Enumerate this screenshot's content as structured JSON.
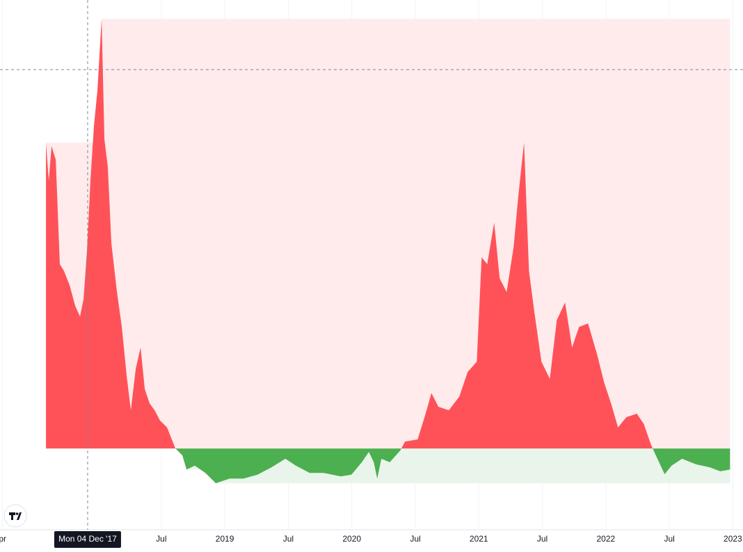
{
  "chart_data": {
    "type": "baseline-area",
    "baseline": 0,
    "top_color": "#ff5258",
    "bottom_color": "#4caf50",
    "top_band_color": "#ffebec",
    "bottom_band_color": "#e9f5ea",
    "grid": true,
    "xlim": [
      2017.23,
      2023.08
    ],
    "ylim": [
      -18.6,
      104.4
    ],
    "xticks": [
      {
        "value": 2017.25,
        "label": "pr"
      },
      {
        "value": 2018.5,
        "label": "Jul"
      },
      2019,
      {
        "value": 2019.5,
        "label": "Jul"
      },
      2020,
      {
        "value": 2020.5,
        "label": "Jul"
      },
      2021,
      {
        "value": 2021.5,
        "label": "Jul"
      },
      2022,
      {
        "value": 2022.5,
        "label": "Jul"
      },
      2023
    ],
    "crosshair": {
      "x": 2017.92,
      "y": 88.2,
      "label": "Mon 04 Dec '17"
    },
    "x": [
      2017.592,
      2017.614,
      2017.636,
      2017.669,
      2017.701,
      2017.734,
      2017.778,
      2017.822,
      2017.86,
      2017.888,
      2017.915,
      2017.942,
      2017.97,
      2017.997,
      2018.03,
      2018.052,
      2018.079,
      2018.107,
      2018.151,
      2018.189,
      2018.227,
      2018.26,
      2018.299,
      2018.337,
      2018.37,
      2018.408,
      2018.447,
      2018.49,
      2018.545,
      2018.611,
      2018.666,
      2018.699,
      2018.764,
      2018.847,
      2018.929,
      2019.038,
      2019.148,
      2019.258,
      2019.367,
      2019.477,
      2019.559,
      2019.668,
      2019.778,
      2019.915,
      2019.997,
      2020.079,
      2020.134,
      2020.173,
      2020.2,
      2020.233,
      2020.299,
      2020.381,
      2020.419,
      2020.518,
      2020.573,
      2020.627,
      2020.682,
      2020.764,
      2020.847,
      2020.912,
      2020.984,
      2021.022,
      2021.066,
      2021.121,
      2021.164,
      2021.219,
      2021.274,
      2021.312,
      2021.356,
      2021.395,
      2021.438,
      2021.493,
      2021.559,
      2021.614,
      2021.679,
      2021.734,
      2021.789,
      2021.86,
      2021.932,
      2021.986,
      2022.041,
      2022.096,
      2022.162,
      2022.244,
      2022.299,
      2022.353,
      2022.381,
      2022.463,
      2022.518,
      2022.6,
      2022.71,
      2022.819,
      2022.901,
      2022.978
    ],
    "values": [
      71.2,
      62.3,
      70.4,
      67.2,
      42.9,
      41.3,
      38.0,
      33.2,
      30.7,
      34.8,
      46.1,
      62.3,
      75.2,
      83.3,
      100,
      72.0,
      65.5,
      47.7,
      36.4,
      28.3,
      17.0,
      8.9,
      18.6,
      23.5,
      13.8,
      10.5,
      8.9,
      6.5,
      4.9,
      0,
      -1.6,
      -4.9,
      -4.0,
      -5.7,
      -8.1,
      -7.0,
      -7.0,
      -6.1,
      -4.4,
      -2.4,
      -4.0,
      -5.7,
      -5.7,
      -6.5,
      -6.1,
      -3.2,
      -0.8,
      -3.2,
      -7.0,
      -2.4,
      -3.2,
      -0.5,
      1.6,
      2.1,
      7.3,
      12.9,
      9.7,
      8.9,
      12.1,
      17.8,
      20.2,
      44.5,
      42.9,
      52.6,
      39.6,
      36.4,
      46.9,
      59.1,
      71.2,
      41.3,
      31.6,
      20.2,
      16.2,
      29.9,
      34.0,
      23.5,
      28.3,
      29.1,
      21.8,
      15.4,
      10.5,
      4.9,
      7.3,
      8.1,
      5.7,
      1.1,
      -0.8,
      -6.0,
      -4.0,
      -2.4,
      -3.7,
      -4.4,
      -5.3,
      -4.9
    ]
  }
}
